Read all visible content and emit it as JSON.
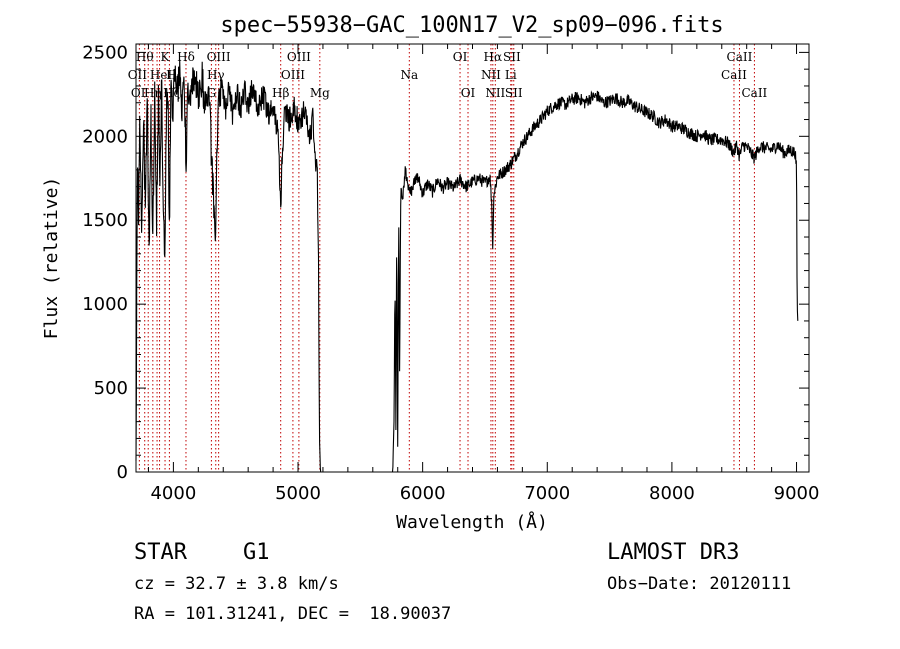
{
  "chart_data": {
    "type": "line",
    "title": "spec−55938−GAC_100N17_V2_sp09−096.fits",
    "xlabel": "Wavelength (Å)",
    "ylabel": "Flux (relative)",
    "xlim": [
      3700,
      9100
    ],
    "ylim": [
      0,
      2550
    ],
    "x_ticks": [
      {
        "value": 4000,
        "label": "4000"
      },
      {
        "value": 5000,
        "label": "5000"
      },
      {
        "value": 6000,
        "label": "6000"
      },
      {
        "value": 7000,
        "label": "7000"
      },
      {
        "value": 8000,
        "label": "8000"
      },
      {
        "value": 9000,
        "label": "9000"
      }
    ],
    "y_ticks": [
      {
        "value": 0,
        "label": "0"
      },
      {
        "value": 500,
        "label": "500"
      },
      {
        "value": 1000,
        "label": "1000"
      },
      {
        "value": 1500,
        "label": "1500"
      },
      {
        "value": 2000,
        "label": "2000"
      },
      {
        "value": 2500,
        "label": "2500"
      }
    ],
    "spectrum_anchors": [
      [
        3700,
        100
      ],
      [
        3705,
        900
      ],
      [
        3712,
        1900
      ],
      [
        3720,
        1500
      ],
      [
        3730,
        2050
      ],
      [
        3745,
        1450
      ],
      [
        3760,
        2150
      ],
      [
        3775,
        1550
      ],
      [
        3790,
        2250
      ],
      [
        3805,
        1300
      ],
      [
        3820,
        2100
      ],
      [
        3835,
        1400
      ],
      [
        3850,
        2250
      ],
      [
        3865,
        1450
      ],
      [
        3880,
        2300
      ],
      [
        3890,
        1650
      ],
      [
        3905,
        2350
      ],
      [
        3920,
        1500
      ],
      [
        3933,
        1250
      ],
      [
        3945,
        2300
      ],
      [
        3958,
        2150
      ],
      [
        3968,
        1350
      ],
      [
        3980,
        2350
      ],
      [
        3995,
        2100
      ],
      [
        4010,
        2400
      ],
      [
        4030,
        2250
      ],
      [
        4050,
        2380
      ],
      [
        4070,
        2180
      ],
      [
        4090,
        2300
      ],
      [
        4101,
        1800
      ],
      [
        4115,
        2350
      ],
      [
        4140,
        2200
      ],
      [
        4170,
        2400
      ],
      [
        4200,
        2250
      ],
      [
        4230,
        2350
      ],
      [
        4260,
        2150
      ],
      [
        4290,
        2300
      ],
      [
        4305,
        1850
      ],
      [
        4320,
        1650
      ],
      [
        4335,
        1350
      ],
      [
        4345,
        1750
      ],
      [
        4360,
        2150
      ],
      [
        4390,
        2300
      ],
      [
        4420,
        2150
      ],
      [
        4450,
        2300
      ],
      [
        4480,
        2100
      ],
      [
        4510,
        2280
      ],
      [
        4540,
        2150
      ],
      [
        4570,
        2280
      ],
      [
        4600,
        2180
      ],
      [
        4640,
        2300
      ],
      [
        4680,
        2150
      ],
      [
        4720,
        2250
      ],
      [
        4760,
        2130
      ],
      [
        4800,
        2200
      ],
      [
        4840,
        2000
      ],
      [
        4855,
        1700
      ],
      [
        4862,
        1580
      ],
      [
        4870,
        1800
      ],
      [
        4890,
        2150
      ],
      [
        4930,
        2100
      ],
      [
        4970,
        2180
      ],
      [
        5010,
        2050
      ],
      [
        5050,
        2150
      ],
      [
        5090,
        2000
      ],
      [
        5120,
        2100
      ],
      [
        5140,
        1850
      ],
      [
        5155,
        1750
      ],
      [
        5165,
        1200
      ],
      [
        5172,
        200
      ],
      [
        5180,
        0
      ],
      [
        5760,
        0
      ],
      [
        5770,
        300
      ],
      [
        5778,
        1150
      ],
      [
        5785,
        250
      ],
      [
        5792,
        1450
      ],
      [
        5800,
        150
      ],
      [
        5808,
        1600
      ],
      [
        5815,
        600
      ],
      [
        5825,
        1700
      ],
      [
        5840,
        1640
      ],
      [
        5860,
        1800
      ],
      [
        5880,
        1720
      ],
      [
        5900,
        1660
      ],
      [
        5930,
        1720
      ],
      [
        5960,
        1760
      ],
      [
        6000,
        1660
      ],
      [
        6040,
        1720
      ],
      [
        6080,
        1670
      ],
      [
        6120,
        1740
      ],
      [
        6160,
        1690
      ],
      [
        6200,
        1720
      ],
      [
        6250,
        1690
      ],
      [
        6300,
        1740
      ],
      [
        6350,
        1700
      ],
      [
        6400,
        1730
      ],
      [
        6450,
        1750
      ],
      [
        6500,
        1720
      ],
      [
        6540,
        1760
      ],
      [
        6555,
        1600
      ],
      [
        6563,
        1300
      ],
      [
        6570,
        1650
      ],
      [
        6600,
        1760
      ],
      [
        6650,
        1790
      ],
      [
        6700,
        1830
      ],
      [
        6750,
        1890
      ],
      [
        6800,
        1960
      ],
      [
        6850,
        2010
      ],
      [
        6900,
        2060
      ],
      [
        6950,
        2100
      ],
      [
        7000,
        2150
      ],
      [
        7050,
        2180
      ],
      [
        7100,
        2200
      ],
      [
        7150,
        2190
      ],
      [
        7200,
        2220
      ],
      [
        7250,
        2230
      ],
      [
        7300,
        2200
      ],
      [
        7350,
        2230
      ],
      [
        7400,
        2240
      ],
      [
        7450,
        2200
      ],
      [
        7500,
        2210
      ],
      [
        7550,
        2230
      ],
      [
        7600,
        2200
      ],
      [
        7650,
        2210
      ],
      [
        7700,
        2180
      ],
      [
        7750,
        2160
      ],
      [
        7800,
        2140
      ],
      [
        7850,
        2120
      ],
      [
        7900,
        2080
      ],
      [
        7950,
        2100
      ],
      [
        8000,
        2060
      ],
      [
        8050,
        2060
      ],
      [
        8100,
        2040
      ],
      [
        8150,
        2020
      ],
      [
        8200,
        2000
      ],
      [
        8250,
        2020
      ],
      [
        8300,
        1980
      ],
      [
        8350,
        1980
      ],
      [
        8400,
        1980
      ],
      [
        8450,
        1960
      ],
      [
        8498,
        1900
      ],
      [
        8520,
        1950
      ],
      [
        8542,
        1880
      ],
      [
        8570,
        1950
      ],
      [
        8610,
        1930
      ],
      [
        8662,
        1870
      ],
      [
        8700,
        1940
      ],
      [
        8750,
        1930
      ],
      [
        8800,
        1920
      ],
      [
        8850,
        1950
      ],
      [
        8900,
        1900
      ],
      [
        8950,
        1920
      ],
      [
        8990,
        1900
      ],
      [
        9000,
        1800
      ],
      [
        9005,
        1000
      ],
      [
        9010,
        900
      ]
    ],
    "lines": [
      {
        "wl": 3727,
        "label": "OII",
        "tier": 1,
        "x_off": -2
      },
      {
        "wl": 3770,
        "label": "Hθ",
        "tier": 0,
        "x_off": 0
      },
      {
        "wl": 3798,
        "label": "OI",
        "tier": 2,
        "x_off": -10
      },
      {
        "wl": 3835,
        "label": "Hη",
        "tier": 2,
        "x_off": 0
      },
      {
        "wl": 3869,
        "label": "HeI",
        "tier": 1,
        "x_off": 4
      },
      {
        "wl": 3889,
        "label": "Hζ",
        "tier": 2,
        "x_off": 12
      },
      {
        "wl": 3933,
        "label": "K",
        "tier": 0,
        "x_off": 0
      },
      {
        "wl": 3968,
        "label": "H",
        "tier": 1,
        "x_off": 2
      },
      {
        "wl": 4101,
        "label": "Hδ",
        "tier": 0,
        "x_off": 0
      },
      {
        "wl": 4305,
        "label": "G",
        "tier": 2,
        "x_off": 0
      },
      {
        "wl": 4340,
        "label": "Hγ",
        "tier": 1,
        "x_off": 0
      },
      {
        "wl": 4363,
        "label": "OIII",
        "tier": 0,
        "x_off": 0
      },
      {
        "wl": 4861,
        "label": "Hβ",
        "tier": 2,
        "x_off": 0
      },
      {
        "wl": 4959,
        "label": "OIII",
        "tier": 1,
        "x_off": 0
      },
      {
        "wl": 5007,
        "label": "OIII",
        "tier": 0,
        "x_off": 0
      },
      {
        "wl": 5175,
        "label": "Mg",
        "tier": 2,
        "x_off": 0
      },
      {
        "wl": 5893,
        "label": "Na",
        "tier": 1,
        "x_off": 0
      },
      {
        "wl": 6300,
        "label": "OI",
        "tier": 0,
        "x_off": 0
      },
      {
        "wl": 6364,
        "label": "OI",
        "tier": 2,
        "x_off": 0
      },
      {
        "wl": 6548,
        "label": "NII",
        "tier": 1,
        "x_off": 0
      },
      {
        "wl": 6563,
        "label": "Hα",
        "tier": 0,
        "x_off": 0
      },
      {
        "wl": 6583,
        "label": "NII",
        "tier": 2,
        "x_off": 0
      },
      {
        "wl": 6707,
        "label": "Li",
        "tier": 1,
        "x_off": 0
      },
      {
        "wl": 6716,
        "label": "SII",
        "tier": 0,
        "x_off": 0
      },
      {
        "wl": 6731,
        "label": "SII",
        "tier": 2,
        "x_off": 0
      },
      {
        "wl": 8498,
        "label": "CaII",
        "tier": 1,
        "x_off": 0
      },
      {
        "wl": 8542,
        "label": "CaII",
        "tier": 0,
        "x_off": 0
      },
      {
        "wl": 8662,
        "label": "CaII",
        "tier": 2,
        "x_off": 0
      }
    ]
  },
  "info": {
    "object_class": "STAR",
    "subclass": "G1",
    "survey": "LAMOST DR3",
    "redshift": "cz = 32.7 ± 3.8 km/s",
    "obs_date": "Obs−Date: 20120111",
    "coords": "RA = 101.31241, DEC =  18.90037"
  }
}
